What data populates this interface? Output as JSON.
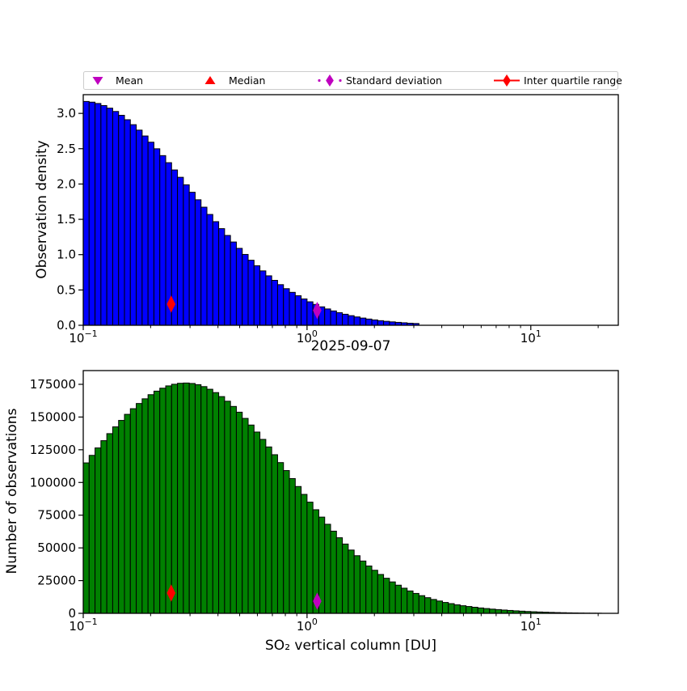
{
  "figure": {
    "background": "#ffffff",
    "title": "2025-09-07"
  },
  "colors": {
    "top_bar_fill": "#0000ff",
    "bottom_bar_fill": "#008000",
    "bar_edge": "#000000",
    "mean_marker": "#bf00bf",
    "median_marker": "#ff0000",
    "std_marker": "#bf00bf",
    "iqr_marker": "#ff0000",
    "spine": "#000000",
    "legend_border": "#cccccc"
  },
  "legend": {
    "items": [
      {
        "label": "Mean",
        "marker": "triangle-down",
        "color": "#bf00bf"
      },
      {
        "label": "Median",
        "marker": "triangle-up",
        "color": "#ff0000"
      },
      {
        "label": "Standard deviation",
        "marker": "thin-diamond-dotted",
        "color": "#bf00bf"
      },
      {
        "label": "Inter quartile range",
        "marker": "thin-diamond-line",
        "color": "#ff0000"
      }
    ]
  },
  "chart_data": [
    {
      "type": "bar",
      "subtype": "histogram-log-x",
      "title": "",
      "xlabel": "2025-09-07",
      "ylabel": "Observation density",
      "x_scale": "log",
      "xlim": [
        0.1,
        24.6
      ],
      "ylim": [
        0,
        3.265
      ],
      "grid": false,
      "bar_color": "#0000ff",
      "bin_start": 0.1,
      "bins_per_decade": 38,
      "xticks": [
        {
          "v": 0.1,
          "base": "10",
          "sup": "−1"
        },
        {
          "v": 1,
          "base": "10",
          "sup": "0"
        },
        {
          "v": 10,
          "base": "10",
          "sup": "1"
        }
      ],
      "minor_xticks": [
        0.2,
        0.3,
        0.4,
        0.5,
        0.6,
        0.7,
        0.8,
        0.9,
        2,
        3,
        4,
        5,
        6,
        7,
        8,
        9,
        20
      ],
      "yticks": [
        {
          "v": 0.0,
          "label": "0.0"
        },
        {
          "v": 0.5,
          "label": "0.5"
        },
        {
          "v": 1.0,
          "label": "1.0"
        },
        {
          "v": 1.5,
          "label": "1.5"
        },
        {
          "v": 2.0,
          "label": "2.0"
        },
        {
          "v": 2.5,
          "label": "2.5"
        },
        {
          "v": 3.0,
          "label": "3.0"
        }
      ],
      "values": [
        3.169,
        3.159,
        3.14,
        3.111,
        3.074,
        3.027,
        2.973,
        2.91,
        2.84,
        2.763,
        2.68,
        2.592,
        2.499,
        2.402,
        2.302,
        2.199,
        2.095,
        1.989,
        1.883,
        1.777,
        1.672,
        1.569,
        1.467,
        1.368,
        1.272,
        1.179,
        1.089,
        1.003,
        0.921,
        0.843,
        0.77,
        0.7,
        0.636,
        0.575,
        0.518,
        0.466,
        0.418,
        0.373,
        0.332,
        0.295,
        0.261,
        0.231,
        0.203,
        0.178,
        0.156,
        0.136,
        0.118,
        0.102,
        0.088,
        0.076,
        0.065,
        0.056,
        0.048,
        0.041,
        0.035,
        0.029,
        0.025
      ],
      "markers": {
        "mean": {
          "x": 1.11,
          "y": 0.21
        },
        "median": {
          "x": 0.247,
          "y": 0.3
        },
        "std": {
          "x": 1.11,
          "y": 0.21
        },
        "iqr": {
          "x": 0.247,
          "y": 0.3
        }
      }
    },
    {
      "type": "bar",
      "subtype": "histogram-log-x",
      "title": "",
      "xlabel": "SO₂ vertical column [DU]",
      "ylabel": "Number of observations",
      "x_scale": "log",
      "xlim": [
        0.1,
        24.6
      ],
      "ylim": [
        0,
        185500
      ],
      "grid": false,
      "bar_color": "#008000",
      "bin_start": 0.1,
      "bins_per_decade": 38,
      "xticks": [
        {
          "v": 0.1,
          "base": "10",
          "sup": "−1"
        },
        {
          "v": 1,
          "base": "10",
          "sup": "0"
        },
        {
          "v": 10,
          "base": "10",
          "sup": "1"
        }
      ],
      "minor_xticks": [
        0.2,
        0.3,
        0.4,
        0.5,
        0.6,
        0.7,
        0.8,
        0.9,
        2,
        3,
        4,
        5,
        6,
        7,
        8,
        9,
        20
      ],
      "yticks": [
        {
          "v": 0,
          "label": "0"
        },
        {
          "v": 25000,
          "label": "25000"
        },
        {
          "v": 50000,
          "label": "50000"
        },
        {
          "v": 75000,
          "label": "75000"
        },
        {
          "v": 100000,
          "label": "100000"
        },
        {
          "v": 125000,
          "label": "125000"
        },
        {
          "v": 150000,
          "label": "150000"
        },
        {
          "v": 175000,
          "label": "175000"
        }
      ],
      "values": [
        114960,
        120720,
        126390,
        131940,
        137320,
        142490,
        147420,
        152060,
        156380,
        160350,
        163930,
        167090,
        169800,
        172050,
        173800,
        175050,
        175790,
        176000,
        175650,
        174740,
        173260,
        171230,
        168680,
        165620,
        162080,
        158100,
        153710,
        148960,
        143890,
        138530,
        132930,
        127150,
        121220,
        115190,
        109100,
        102990,
        96910,
        90890,
        84960,
        79170,
        73520,
        68060,
        62790,
        57750,
        52940,
        48360,
        44040,
        39970,
        36170,
        32900,
        29700,
        26800,
        24000,
        21500,
        19200,
        17100,
        15200,
        13500,
        11950,
        10600,
        9400,
        8300,
        7400,
        6500,
        5800,
        5200,
        4650,
        4100,
        3650,
        3200,
        2850,
        2500,
        2200,
        1900,
        1650,
        1400,
        1200,
        1020,
        850,
        710,
        580,
        470,
        370,
        290,
        220,
        160,
        110,
        80
      ],
      "markers": {
        "mean": {
          "x": 1.11,
          "y": 9300
        },
        "median": {
          "x": 0.247,
          "y": 15500
        },
        "std": {
          "x": 1.11,
          "y": 9300
        },
        "iqr": {
          "x": 0.247,
          "y": 15500
        }
      }
    }
  ]
}
